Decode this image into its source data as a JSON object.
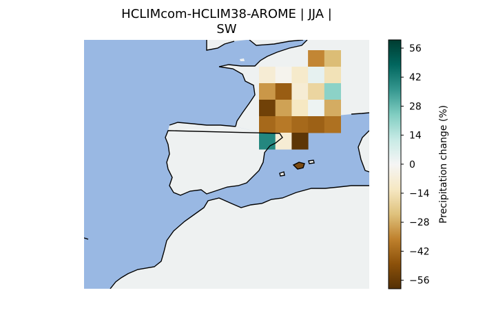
{
  "figure": {
    "title_line1": "HCLIMcom-HCLIM38-AROME | JJA |",
    "title_line2": "SW"
  },
  "map": {
    "sea_color": "#99b8e3",
    "land_color": "#eef1f1",
    "coast_color": "#000000"
  },
  "colorbar": {
    "label": "Precipitation change (%)",
    "ticks": [
      "56",
      "42",
      "28",
      "14",
      "0",
      "−14",
      "−28",
      "−42",
      "−56"
    ],
    "range": [
      -60,
      60
    ],
    "colormap": "BrBG"
  },
  "grid_cells": [
    {
      "row": 0,
      "col": 5,
      "value": -35
    },
    {
      "row": 0,
      "col": 6,
      "value": -25
    },
    {
      "row": 1,
      "col": 2,
      "value": -8
    },
    {
      "row": 1,
      "col": 3,
      "value": -2
    },
    {
      "row": 1,
      "col": 4,
      "value": -10
    },
    {
      "row": 1,
      "col": 5,
      "value": 4
    },
    {
      "row": 1,
      "col": 6,
      "value": -14
    },
    {
      "row": 2,
      "col": 2,
      "value": -32
    },
    {
      "row": 2,
      "col": 3,
      "value": -45
    },
    {
      "row": 2,
      "col": 4,
      "value": -8
    },
    {
      "row": 2,
      "col": 5,
      "value": -18
    },
    {
      "row": 2,
      "col": 6,
      "value": 22
    },
    {
      "row": 3,
      "col": 2,
      "value": -54
    },
    {
      "row": 3,
      "col": 3,
      "value": -30
    },
    {
      "row": 3,
      "col": 4,
      "value": -12
    },
    {
      "row": 3,
      "col": 5,
      "value": 2
    },
    {
      "row": 3,
      "col": 6,
      "value": -28
    },
    {
      "row": 4,
      "col": 2,
      "value": -42
    },
    {
      "row": 4,
      "col": 3,
      "value": -38
    },
    {
      "row": 4,
      "col": 4,
      "value": -42
    },
    {
      "row": 4,
      "col": 5,
      "value": -44
    },
    {
      "row": 4,
      "col": 6,
      "value": -40
    },
    {
      "row": 5,
      "col": 2,
      "value": 40
    },
    {
      "row": 5,
      "col": 3,
      "value": -8
    },
    {
      "row": 5,
      "col": 4,
      "value": -58
    }
  ]
}
